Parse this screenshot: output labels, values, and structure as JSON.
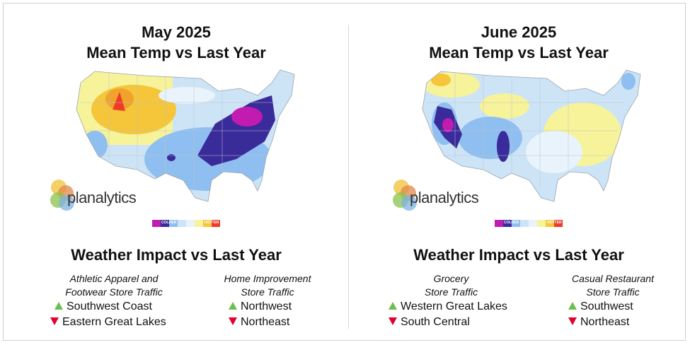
{
  "panels": [
    {
      "title_line1": "May 2025",
      "title_line2": "Mean Temp vs Last Year",
      "brand": "planalytics",
      "legend": {
        "colder": "COLDER",
        "hotter": "HOTTER"
      },
      "impact_title": "Weather Impact vs Last Year",
      "columns": [
        {
          "header_line1": "Athletic Apparel and",
          "header_line2": "Footwear Store Traffic",
          "items": [
            {
              "direction": "up",
              "label": "Southwest Coast"
            },
            {
              "direction": "down",
              "label": "Eastern Great Lakes"
            }
          ]
        },
        {
          "header_line1": "Home Improvement",
          "header_line2": "Store Traffic",
          "items": [
            {
              "direction": "up",
              "label": "Northwest"
            },
            {
              "direction": "down",
              "label": "Northeast"
            }
          ]
        }
      ]
    },
    {
      "title_line1": "June 2025",
      "title_line2": "Mean Temp vs Last Year",
      "brand": "planalytics",
      "legend": {
        "colder": "COLDER",
        "hotter": "HOTTER"
      },
      "impact_title": "Weather Impact vs Last Year",
      "columns": [
        {
          "header_line1": "Grocery",
          "header_line2": "Store Traffic",
          "items": [
            {
              "direction": "up",
              "label": "Western Great Lakes"
            },
            {
              "direction": "down",
              "label": "South Central"
            }
          ]
        },
        {
          "header_line1": "Casual Restaurant",
          "header_line2": "Store Traffic",
          "items": [
            {
              "direction": "up",
              "label": "Southwest"
            },
            {
              "direction": "down",
              "label": "Northeast"
            }
          ]
        }
      ]
    }
  ],
  "colors": {
    "much_colder": "#c21bb0",
    "colder_strong": "#3a2b9a",
    "colder": "#8fbff0",
    "slightly_colder": "#cde4f7",
    "neutral": "#e9f3fb",
    "slightly_warmer": "#f7f39a",
    "warmer": "#f5c53a",
    "hotter": "#ee3b2a",
    "up_arrow": "#6cbf4a",
    "down_arrow": "#e4002b"
  }
}
